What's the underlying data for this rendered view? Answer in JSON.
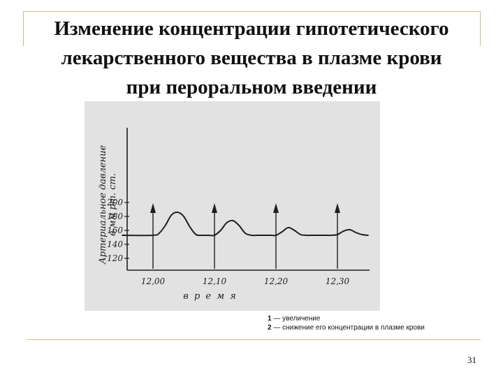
{
  "slide": {
    "title_lines": [
      "Изменение концентрации гипотетического",
      "лекарственного вещества в плазме крови",
      "при пероральном введении"
    ],
    "page_number": "31",
    "colors": {
      "frame_line": "#c9bf7e",
      "figure_background": "#e2e2e2",
      "ink": "#1e1e1e"
    }
  },
  "legend": {
    "items": [
      {
        "num": "1",
        "text": " — увеличение"
      },
      {
        "num": "2",
        "text": " — снижение его концентрации в плазме крови"
      }
    ]
  },
  "chart_data": {
    "type": "line",
    "title": "",
    "ylabel": "Артериальное давление в мм рт. ст.",
    "xlabel": "в р е м я",
    "y_ticks": [
      "200",
      "180",
      "160",
      "140",
      "120"
    ],
    "x_ticks": [
      "12,00",
      "12,10",
      "12,20",
      "12,30"
    ],
    "ylim": [
      110,
      200
    ],
    "grid": false,
    "series": [
      {
        "x": [
          11.95,
          12.0,
          12.01,
          12.02,
          12.03,
          12.04,
          12.05,
          12.06,
          12.07,
          12.08,
          12.09,
          12.1,
          12.11,
          12.12,
          12.13,
          12.14,
          12.15,
          12.16,
          12.17,
          12.18,
          12.19,
          12.2,
          12.21,
          12.22,
          12.23,
          12.24,
          12.25,
          12.26,
          12.27,
          12.28,
          12.29,
          12.3,
          12.31,
          12.32,
          12.33,
          12.34,
          12.35
        ],
        "y": [
          153,
          153,
          156,
          167,
          182,
          186,
          180,
          165,
          154,
          153,
          153,
          153,
          160,
          171,
          174,
          167,
          156,
          153,
          153,
          153,
          153,
          153,
          158,
          164,
          160,
          154,
          153,
          153,
          153,
          153,
          153,
          154,
          159,
          161,
          157,
          154,
          153
        ]
      }
    ],
    "arrows_at": [
      "12,00",
      "12,10",
      "12,20",
      "12,30"
    ]
  }
}
